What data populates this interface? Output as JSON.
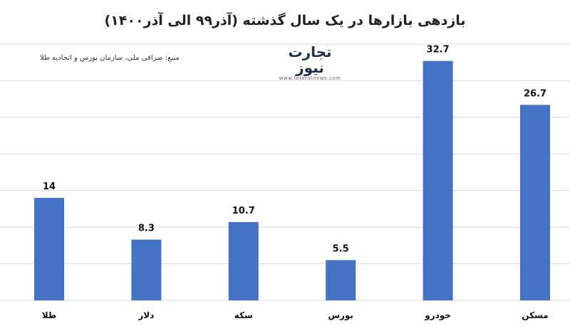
{
  "chart_data": {
    "type": "bar",
    "title": "بازدهی بازارها در یک سال گذشته (آذر۹۹ الی آذر۱۴۰۰)",
    "source": "منبع: صرافی ملی، سازمان بورس و اتحادیه طلا",
    "categories": [
      "طلا",
      "دلار",
      "سکه",
      "بورس",
      "خودرو",
      "مسکن"
    ],
    "values": [
      14,
      8.3,
      10.7,
      5.5,
      32.7,
      26.7
    ],
    "value_labels": [
      "14",
      "8.3",
      "10.7",
      "5.5",
      "32.7",
      "26.7"
    ],
    "ylim": [
      0,
      35
    ],
    "grid": true,
    "bar_color": "#4472c4"
  },
  "logo": {
    "name": "تجارت نیوز",
    "site": "www.tejaratnews.com"
  }
}
